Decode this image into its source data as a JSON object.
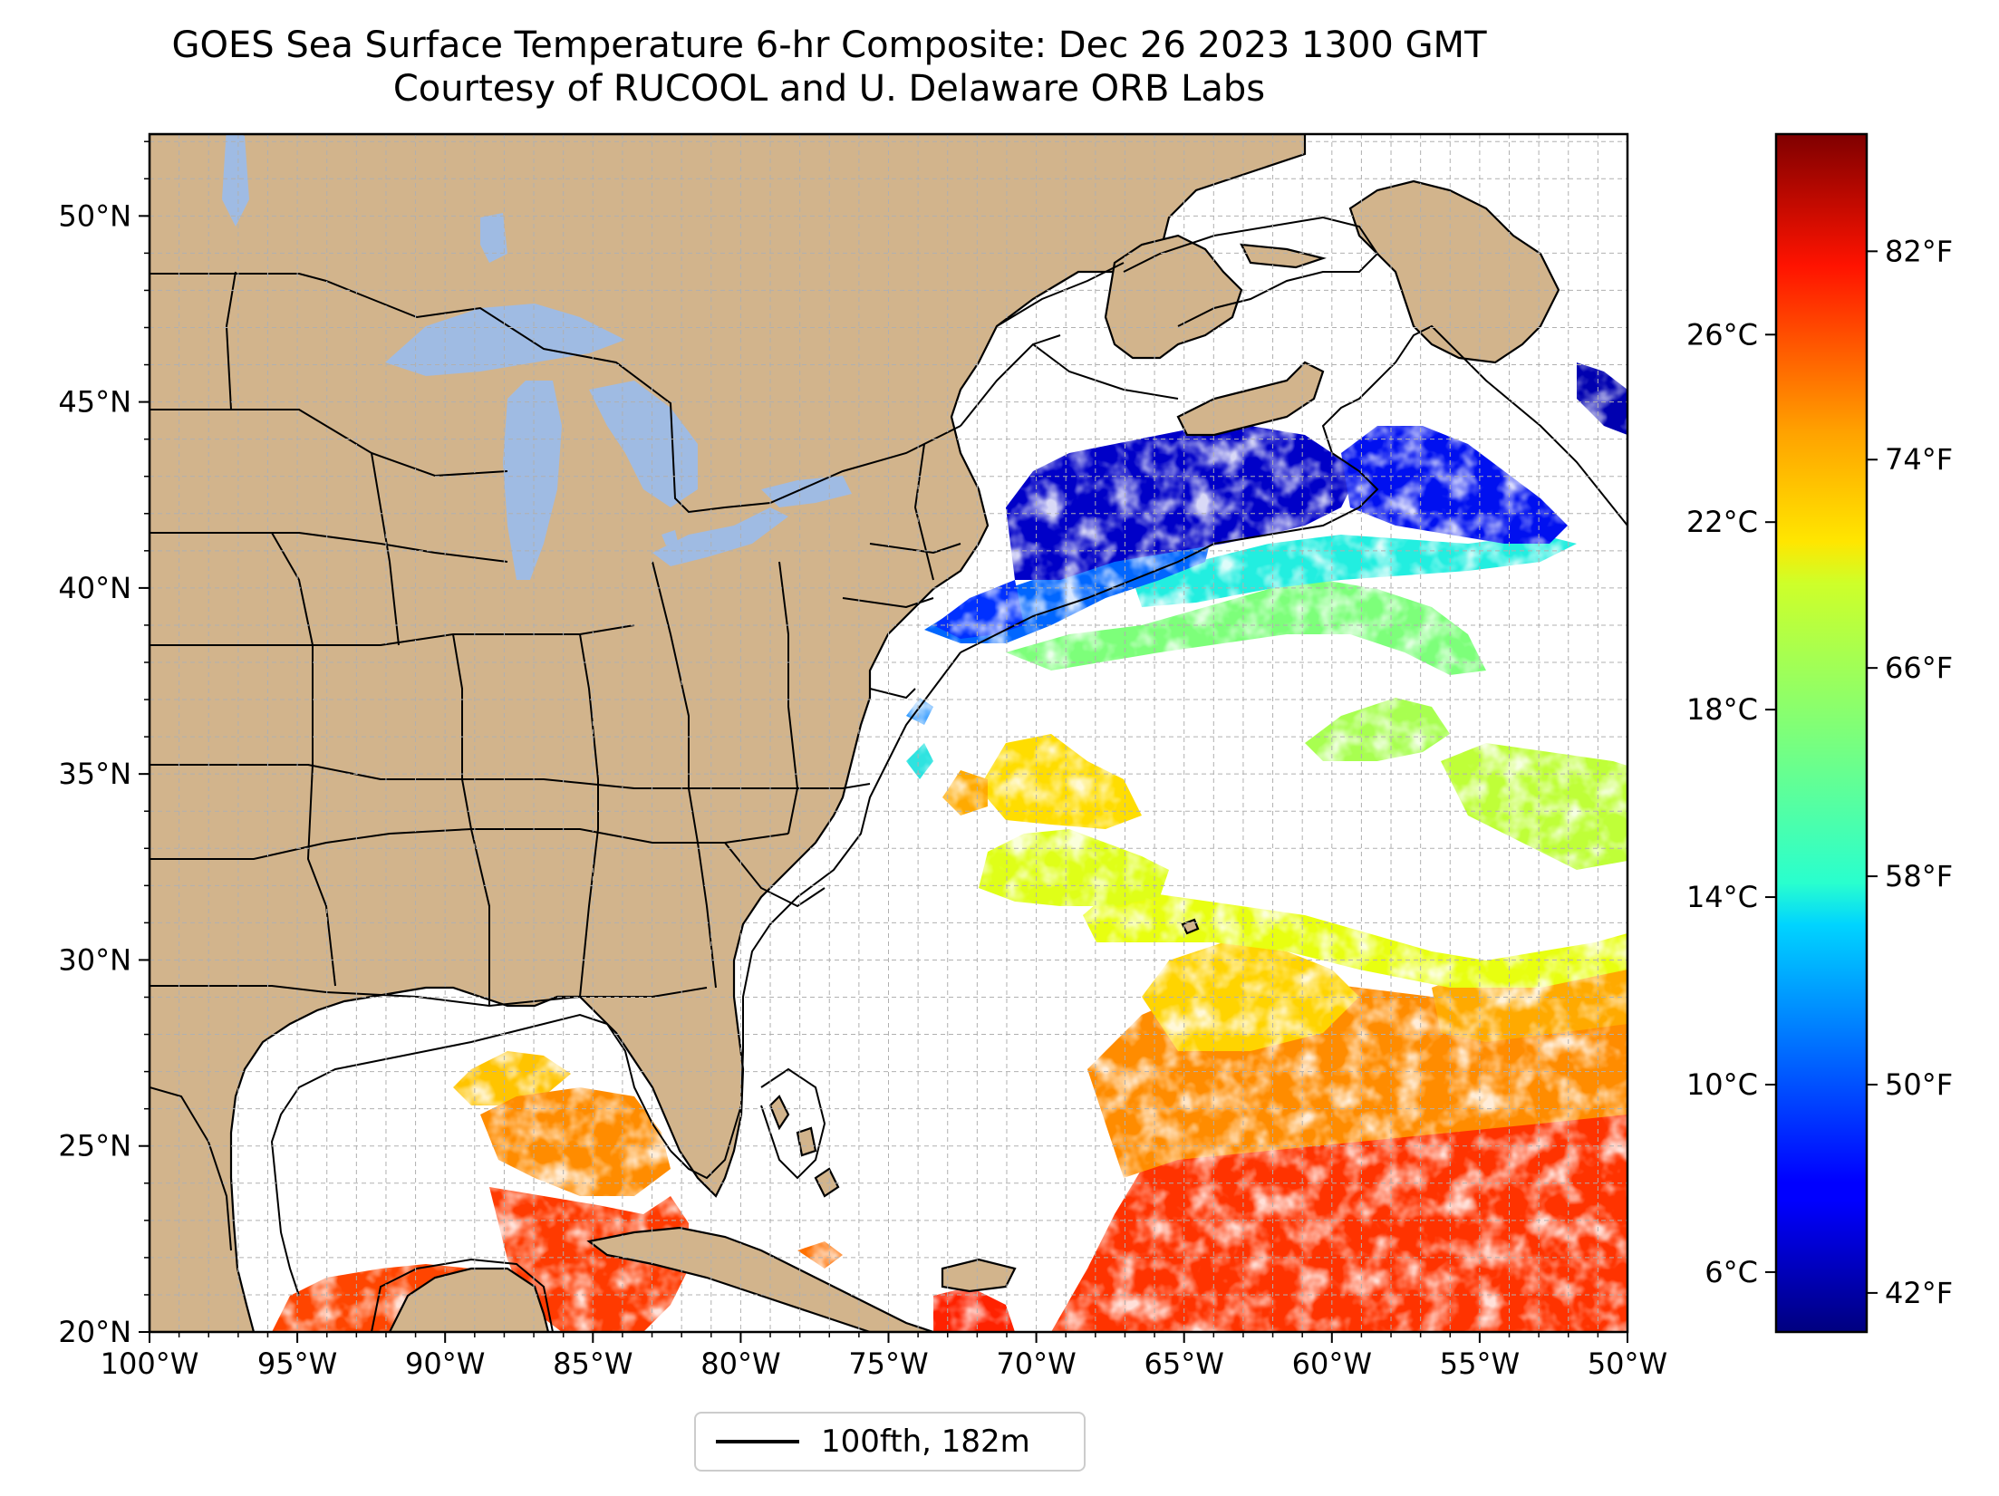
{
  "title": {
    "line1": "GOES Sea Surface Temperature 6-hr Composite: Dec 26 2023 1300 GMT",
    "line2": "Courtesy of RUCOOL and U. Delaware ORB Labs"
  },
  "map": {
    "lon_range": [
      -100,
      -50
    ],
    "lat_range": [
      20,
      52.2
    ],
    "lon_ticks": [
      {
        "value": -100,
        "label": "100°W"
      },
      {
        "value": -95,
        "label": "95°W"
      },
      {
        "value": -90,
        "label": "90°W"
      },
      {
        "value": -85,
        "label": "85°W"
      },
      {
        "value": -80,
        "label": "80°W"
      },
      {
        "value": -75,
        "label": "75°W"
      },
      {
        "value": -70,
        "label": "70°W"
      },
      {
        "value": -65,
        "label": "65°W"
      },
      {
        "value": -60,
        "label": "60°W"
      },
      {
        "value": -55,
        "label": "55°W"
      },
      {
        "value": -50,
        "label": "50°W"
      }
    ],
    "lat_ticks": [
      {
        "value": 20,
        "label": "20°N"
      },
      {
        "value": 25,
        "label": "25°N"
      },
      {
        "value": 30,
        "label": "30°N"
      },
      {
        "value": 35,
        "label": "35°N"
      },
      {
        "value": 40,
        "label": "40°N"
      },
      {
        "value": 45,
        "label": "45°N"
      },
      {
        "value": 50,
        "label": "50°N"
      }
    ],
    "colors": {
      "land": "#d2b48c",
      "lakes": "#9fbbe3",
      "ocean_nodata": "#ffffff",
      "border": "#000000",
      "grid": "#b0b0b0"
    }
  },
  "colorbar": {
    "colormap": "jet",
    "range_f": [
      40.5,
      86.5
    ],
    "celsius_ticks": [
      {
        "value": 6,
        "label": "6°C"
      },
      {
        "value": 10,
        "label": "10°C"
      },
      {
        "value": 14,
        "label": "14°C"
      },
      {
        "value": 18,
        "label": "18°C"
      },
      {
        "value": 22,
        "label": "22°C"
      },
      {
        "value": 26,
        "label": "26°C"
      }
    ],
    "fahrenheit_ticks": [
      {
        "value": 42,
        "label": "42°F"
      },
      {
        "value": 50,
        "label": "50°F"
      },
      {
        "value": 58,
        "label": "58°F"
      },
      {
        "value": 66,
        "label": "66°F"
      },
      {
        "value": 74,
        "label": "74°F"
      },
      {
        "value": 82,
        "label": "82°F"
      }
    ]
  },
  "legend": {
    "label": "100fth, 182m",
    "line_color": "#000000"
  }
}
